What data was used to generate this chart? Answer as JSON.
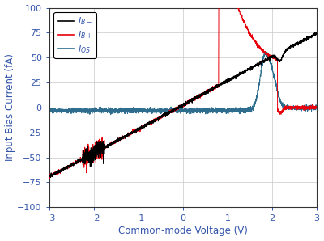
{
  "xlabel": "Common-mode Voltage (V)",
  "ylabel": "Input Bias Current (fA)",
  "xlim": [
    -3,
    3
  ],
  "ylim": [
    -100,
    100
  ],
  "xticks": [
    -3,
    -2,
    -1,
    0,
    1,
    2,
    3
  ],
  "yticks": [
    -100,
    -75,
    -50,
    -25,
    0,
    25,
    50,
    75,
    100
  ],
  "color_ibm": "#000000",
  "color_ibp": "#e8000b",
  "color_ios": "#2e6d8e",
  "background_color": "#ffffff",
  "grid_color": "#c8c8c8",
  "label_color": "#3355aa",
  "spine_color": "#333333"
}
